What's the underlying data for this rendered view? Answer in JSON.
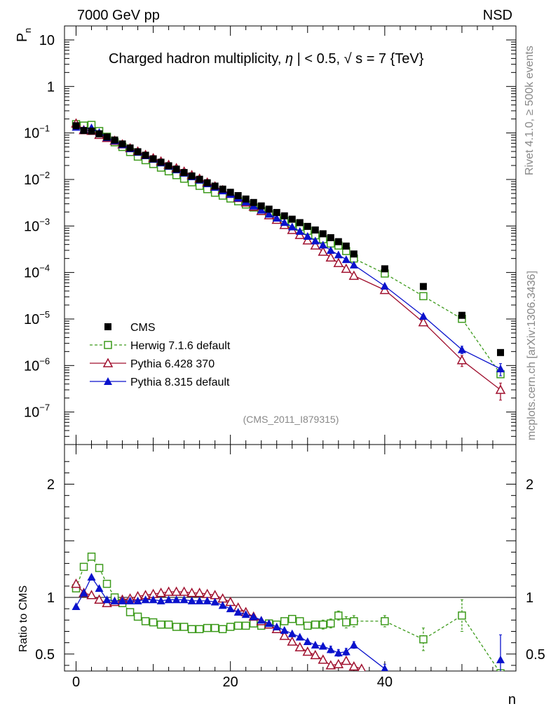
{
  "header": {
    "left": "7000 GeV pp",
    "right": "NSD"
  },
  "side_labels": {
    "rivet": "Rivet 4.1.0, ≥ 500k events",
    "mcplots": "mcplots.cern.ch [arXiv:1306.3436]"
  },
  "reference": "(CMS_2011_I879315)",
  "chart_data": [
    {
      "type": "scatter",
      "panel": "main",
      "title": "Charged hadron multiplicity, |η| < 0.5, √s = 7 {TeV}",
      "title_parts": {
        "prefix": "Charged hadron multiplicity,",
        "eta": "η",
        "cut": "| < 0.5,",
        "sqrt": "√",
        "s": "s",
        "energy": "= 7 {TeV}"
      },
      "xlabel": "n",
      "ylabel": "P",
      "ylabel_sub": "n",
      "yscale": "log",
      "ylim": [
        2e-08,
        20
      ],
      "xlim": [
        -1.5,
        57
      ],
      "yticks": [
        {
          "v": 1e-07,
          "base": "10",
          "exp": "−7"
        },
        {
          "v": 1e-06,
          "base": "10",
          "exp": "−6"
        },
        {
          "v": 1e-05,
          "base": "10",
          "exp": "−5"
        },
        {
          "v": 0.0001,
          "base": "10",
          "exp": "−4"
        },
        {
          "v": 0.001,
          "base": "10",
          "exp": "−3"
        },
        {
          "v": 0.01,
          "base": "10",
          "exp": "−2"
        },
        {
          "v": 0.1,
          "base": "10",
          "exp": "−1"
        },
        {
          "v": 1,
          "base": "1",
          "exp": ""
        },
        {
          "v": 10,
          "base": "10",
          "exp": ""
        }
      ],
      "series": [
        {
          "name": "CMS",
          "color": "#000000",
          "marker": "filled-square",
          "line": "none",
          "x": [
            0,
            1,
            2,
            3,
            4,
            5,
            6,
            7,
            8,
            9,
            10,
            11,
            12,
            13,
            14,
            15,
            16,
            17,
            18,
            19,
            20,
            21,
            22,
            23,
            24,
            25,
            26,
            27,
            28,
            29,
            30,
            31,
            32,
            33,
            34,
            35,
            36,
            40,
            45,
            50,
            55
          ],
          "y": [
            0.143,
            0.113,
            0.11,
            0.096,
            0.082,
            0.0705,
            0.058,
            0.0475,
            0.0395,
            0.0332,
            0.0278,
            0.0235,
            0.0197,
            0.0167,
            0.0141,
            0.0119,
            0.0101,
            0.0085,
            0.0072,
            0.0062,
            0.0053,
            0.0045,
            0.0038,
            0.0032,
            0.0027,
            0.0023,
            0.00195,
            0.00165,
            0.0014,
            0.00118,
            0.00098,
            0.00082,
            0.00068,
            0.00056,
            0.00046,
            0.00037,
            0.00025,
            0.00012,
            5e-05,
            1.2e-05,
            1.9e-06
          ]
        },
        {
          "name": "Herwig 7.1.6 default",
          "color": "#3c9a1b",
          "marker": "open-square",
          "line": "dashed",
          "x": [
            0,
            1,
            2,
            3,
            4,
            5,
            6,
            7,
            8,
            9,
            10,
            11,
            12,
            13,
            14,
            15,
            16,
            17,
            18,
            19,
            20,
            21,
            22,
            23,
            24,
            25,
            26,
            27,
            28,
            29,
            30,
            31,
            32,
            33,
            34,
            35,
            36,
            40,
            45,
            50,
            55
          ],
          "y": [
            0.155,
            0.144,
            0.149,
            0.11,
            0.083,
            0.063,
            0.05,
            0.039,
            0.031,
            0.026,
            0.0215,
            0.018,
            0.015,
            0.0124,
            0.0104,
            0.0087,
            0.0073,
            0.0062,
            0.0052,
            0.0045,
            0.0039,
            0.0034,
            0.0029,
            0.0025,
            0.0021,
            0.0018,
            0.0015,
            0.0013,
            0.00112,
            0.00096,
            0.00079,
            0.00063,
            0.00052,
            0.00042,
            0.00038,
            0.00029,
            0.0002,
            9.5e-05,
            3.1e-05,
            1.01e-05,
            6.5e-07
          ],
          "yerr": [
            [
              55,
              9e-08
            ]
          ]
        },
        {
          "name": "Pythia 6.428 370",
          "color": "#a0102e",
          "marker": "open-triangle",
          "line": "solid",
          "x": [
            0,
            1,
            2,
            3,
            4,
            5,
            6,
            7,
            8,
            9,
            10,
            11,
            12,
            13,
            14,
            15,
            16,
            17,
            18,
            19,
            20,
            21,
            22,
            23,
            24,
            25,
            26,
            27,
            28,
            29,
            30,
            31,
            32,
            33,
            34,
            35,
            36,
            40,
            45,
            50,
            55
          ],
          "y": [
            0.16,
            0.115,
            0.111,
            0.091,
            0.078,
            0.068,
            0.057,
            0.047,
            0.04,
            0.0337,
            0.0287,
            0.0245,
            0.0206,
            0.0175,
            0.0148,
            0.0124,
            0.0104,
            0.0086,
            0.0071,
            0.0059,
            0.0049,
            0.004,
            0.0032,
            0.0026,
            0.0021,
            0.0017,
            0.00136,
            0.00105,
            0.00082,
            0.00064,
            0.00049,
            0.00038,
            0.00028,
            0.00021,
            0.00016,
            0.00012,
            8.5e-05,
            4.2e-05,
            8.5e-06,
            1.3e-06,
            3e-07
          ],
          "yerr": [
            [
              50,
              3.5e-07
            ],
            [
              55,
              1.2e-07
            ]
          ]
        },
        {
          "name": "Pythia 8.315 default",
          "color": "#0a12cc",
          "marker": "filled-triangle",
          "line": "solid",
          "x": [
            0,
            1,
            2,
            3,
            4,
            5,
            6,
            7,
            8,
            9,
            10,
            11,
            12,
            13,
            14,
            15,
            16,
            17,
            18,
            19,
            20,
            21,
            22,
            23,
            24,
            25,
            26,
            27,
            28,
            29,
            30,
            31,
            32,
            33,
            34,
            35,
            36,
            40,
            45,
            50,
            55
          ],
          "y": [
            0.133,
            0.118,
            0.13,
            0.103,
            0.08,
            0.068,
            0.056,
            0.046,
            0.0385,
            0.0325,
            0.0272,
            0.0228,
            0.0192,
            0.0162,
            0.0137,
            0.0115,
            0.0097,
            0.0081,
            0.0068,
            0.0057,
            0.0048,
            0.004,
            0.0033,
            0.0027,
            0.0022,
            0.0018,
            0.00148,
            0.00119,
            0.00096,
            0.00077,
            0.0006,
            0.00048,
            0.00039,
            0.0003,
            0.00024,
            0.00019,
            0.000145,
            5.1e-05,
            1.15e-05,
            2.2e-06,
            8.5e-07
          ],
          "yerr": [
            [
              50,
              4e-07
            ],
            [
              55,
              2.5e-07
            ]
          ]
        }
      ]
    },
    {
      "type": "scatter",
      "panel": "ratio",
      "ylabel": "Ratio to CMS",
      "xlabel": "n",
      "xlim": [
        -1.5,
        57
      ],
      "ylim": [
        0.35,
        2.35
      ],
      "yticks": [
        {
          "v": 0.5,
          "label": "0.5"
        },
        {
          "v": 1,
          "label": "1"
        },
        {
          "v": 2,
          "label": "2"
        }
      ],
      "xticks": [
        {
          "v": 0,
          "label": "0"
        },
        {
          "v": 20,
          "label": "20"
        },
        {
          "v": 40,
          "label": "40"
        }
      ],
      "reference_line": 1,
      "series": [
        {
          "name": "Herwig 7.1.6 default",
          "color": "#3c9a1b",
          "marker": "open-square",
          "line": "dashed",
          "x": [
            0,
            1,
            2,
            3,
            4,
            5,
            6,
            7,
            8,
            9,
            10,
            11,
            12,
            13,
            14,
            15,
            16,
            17,
            18,
            19,
            20,
            21,
            22,
            23,
            24,
            25,
            26,
            27,
            28,
            29,
            30,
            31,
            32,
            33,
            34,
            35,
            36,
            40,
            45,
            50,
            55
          ],
          "y": [
            1.08,
            1.27,
            1.36,
            1.26,
            1.12,
            1.0,
            0.95,
            0.87,
            0.83,
            0.79,
            0.78,
            0.76,
            0.76,
            0.74,
            0.74,
            0.72,
            0.72,
            0.73,
            0.73,
            0.72,
            0.74,
            0.75,
            0.75,
            0.77,
            0.75,
            0.77,
            0.76,
            0.79,
            0.81,
            0.79,
            0.75,
            0.76,
            0.76,
            0.77,
            0.84,
            0.78,
            0.79,
            0.79,
            0.63,
            0.84,
            0.33
          ],
          "yerr": [
            [
              26,
              0.02
            ],
            [
              27,
              0.03
            ],
            [
              28,
              0.03
            ],
            [
              29,
              0.03
            ],
            [
              30,
              0.03
            ],
            [
              31,
              0.03
            ],
            [
              32,
              0.04
            ],
            [
              33,
              0.04
            ],
            [
              34,
              0.04
            ],
            [
              35,
              0.05
            ],
            [
              36,
              0.05
            ],
            [
              40,
              0.05
            ],
            [
              45,
              0.1
            ],
            [
              50,
              0.14
            ]
          ]
        },
        {
          "name": "Pythia 6.428 370",
          "color": "#a0102e",
          "marker": "open-triangle",
          "line": "solid",
          "x": [
            0,
            1,
            2,
            3,
            4,
            5,
            6,
            7,
            8,
            9,
            10,
            11,
            12,
            13,
            14,
            15,
            16,
            17,
            18,
            19,
            20,
            21,
            22,
            23,
            24,
            25,
            26,
            27,
            28,
            29,
            30,
            31,
            32,
            33,
            34,
            35,
            36,
            37
          ],
          "y": [
            1.12,
            1.04,
            1.02,
            0.98,
            0.95,
            0.96,
            0.98,
            0.99,
            1.01,
            1.02,
            1.03,
            1.04,
            1.05,
            1.05,
            1.05,
            1.04,
            1.04,
            1.03,
            1.02,
            0.99,
            0.96,
            0.91,
            0.87,
            0.83,
            0.79,
            0.76,
            0.72,
            0.66,
            0.61,
            0.56,
            0.52,
            0.49,
            0.45,
            0.4,
            0.41,
            0.44,
            0.39,
            0.37
          ]
        },
        {
          "name": "Pythia 8.315 default",
          "color": "#0a12cc",
          "marker": "filled-triangle",
          "line": "solid",
          "x": [
            0,
            1,
            2,
            3,
            4,
            5,
            6,
            7,
            8,
            9,
            10,
            11,
            12,
            13,
            14,
            15,
            16,
            17,
            18,
            19,
            20,
            21,
            22,
            23,
            24,
            25,
            26,
            27,
            28,
            29,
            30,
            31,
            32,
            33,
            34,
            35,
            36,
            40
          ],
          "y": [
            0.92,
            1.04,
            1.18,
            1.08,
            0.98,
            0.97,
            0.97,
            0.97,
            0.97,
            0.98,
            0.98,
            0.97,
            0.98,
            0.98,
            0.98,
            0.97,
            0.97,
            0.97,
            0.96,
            0.93,
            0.9,
            0.87,
            0.85,
            0.83,
            0.8,
            0.77,
            0.74,
            0.71,
            0.68,
            0.65,
            0.61,
            0.58,
            0.57,
            0.54,
            0.51,
            0.52,
            0.58,
            0.37
          ],
          "yerr": [
            [
              33,
              0.03
            ],
            [
              34,
              0.03
            ],
            [
              35,
              0.03
            ],
            [
              36,
              0.03
            ],
            [
              40,
              0.04
            ]
          ]
        }
      ]
    }
  ],
  "ratio_extra_points": [
    {
      "series": "Pythia 8.315 default",
      "x": 55,
      "y": 0.45,
      "err_up": 0.22,
      "err_down": 0.15
    }
  ]
}
